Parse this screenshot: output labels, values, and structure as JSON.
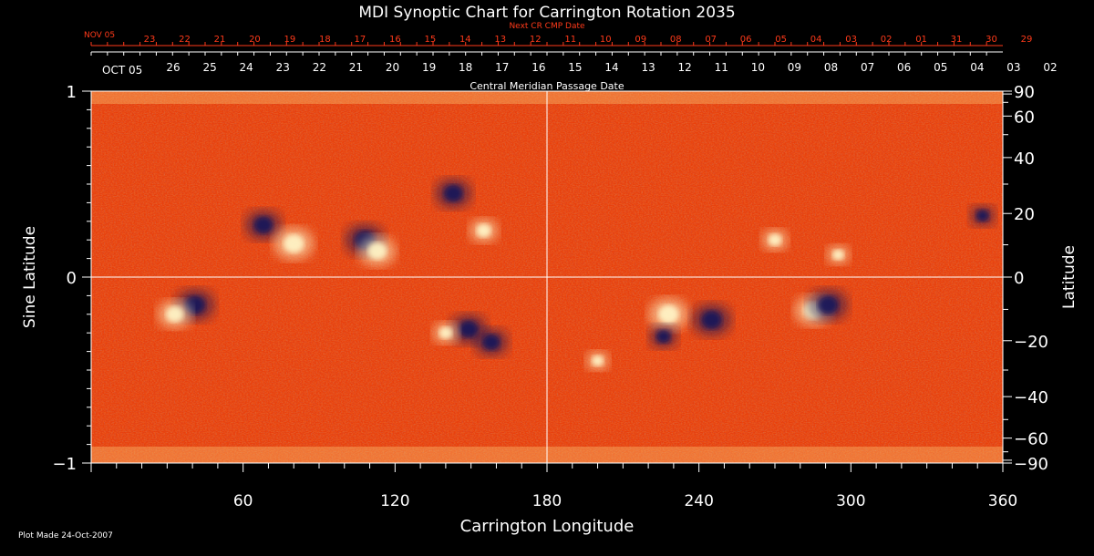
{
  "chart_data": {
    "type": "heatmap",
    "title": "MDI Synoptic Chart for Carrington Rotation 2035",
    "top_axis_next": {
      "title": "Next CR CMP Date",
      "month_label": "NOV 05",
      "ticks": [
        "23",
        "22",
        "21",
        "20",
        "19",
        "18",
        "17",
        "16",
        "15",
        "14",
        "13",
        "12",
        "11",
        "10",
        "09",
        "08",
        "07",
        "06",
        "05",
        "04",
        "03",
        "02",
        "01",
        "31",
        "30",
        "29"
      ]
    },
    "top_axis_cmp": {
      "title": "Central Meridian Passage Date",
      "month_label": "OCT 05",
      "ticks": [
        "26",
        "25",
        "24",
        "23",
        "22",
        "21",
        "20",
        "19",
        "18",
        "17",
        "16",
        "15",
        "14",
        "13",
        "12",
        "11",
        "10",
        "09",
        "08",
        "07",
        "06",
        "05",
        "04",
        "03",
        "02"
      ]
    },
    "x_axis": {
      "label": "Carrington Longitude",
      "range": [
        0,
        360
      ],
      "ticks": [
        60,
        120,
        180,
        240,
        300,
        360
      ]
    },
    "y_axis_left": {
      "label": "Sine Latitude",
      "range": [
        -1,
        1
      ],
      "ticks": [
        {
          "value": 1,
          "text": "1"
        },
        {
          "value": 0,
          "text": "0"
        },
        {
          "value": -1,
          "text": "−1"
        }
      ]
    },
    "y_axis_right": {
      "label": "Latitude",
      "ticks": [
        {
          "value": 90,
          "text": "90"
        },
        {
          "value": 60,
          "text": "60"
        },
        {
          "value": 40,
          "text": "40"
        },
        {
          "value": 20,
          "text": "20"
        },
        {
          "value": 0,
          "text": "0"
        },
        {
          "value": -20,
          "text": "−20"
        },
        {
          "value": -40,
          "text": "−40"
        },
        {
          "value": -60,
          "text": "−60"
        },
        {
          "value": -90,
          "text": "−90"
        }
      ]
    },
    "grid_lines": {
      "longitude": 180,
      "sine_latitude": 0
    },
    "colors": {
      "background_field": "#f04a08",
      "positive_flux": "#fff6c8",
      "negative_flux": "#14125a",
      "top_next_axis": "#ff3a1a",
      "axes": "#ffffff"
    },
    "regions": [
      {
        "lon": 41,
        "sinlat": -0.15,
        "polarity": "negative",
        "strength": 1.0
      },
      {
        "lon": 33,
        "sinlat": -0.2,
        "polarity": "positive",
        "strength": 0.8
      },
      {
        "lon": 68,
        "sinlat": 0.28,
        "polarity": "negative",
        "strength": 0.9
      },
      {
        "lon": 80,
        "sinlat": 0.18,
        "polarity": "positive",
        "strength": 1.0
      },
      {
        "lon": 108,
        "sinlat": 0.2,
        "polarity": "negative",
        "strength": 1.0
      },
      {
        "lon": 113,
        "sinlat": 0.14,
        "polarity": "positive",
        "strength": 0.9
      },
      {
        "lon": 143,
        "sinlat": 0.45,
        "polarity": "negative",
        "strength": 0.9
      },
      {
        "lon": 155,
        "sinlat": 0.25,
        "polarity": "positive",
        "strength": 0.6
      },
      {
        "lon": 149,
        "sinlat": -0.28,
        "polarity": "negative",
        "strength": 0.9
      },
      {
        "lon": 158,
        "sinlat": -0.35,
        "polarity": "negative",
        "strength": 0.8
      },
      {
        "lon": 140,
        "sinlat": -0.3,
        "polarity": "positive",
        "strength": 0.5
      },
      {
        "lon": 228,
        "sinlat": -0.2,
        "polarity": "positive",
        "strength": 1.0
      },
      {
        "lon": 245,
        "sinlat": -0.23,
        "polarity": "negative",
        "strength": 1.0
      },
      {
        "lon": 226,
        "sinlat": -0.32,
        "polarity": "negative",
        "strength": 0.6
      },
      {
        "lon": 285,
        "sinlat": -0.18,
        "polarity": "positive",
        "strength": 0.9
      },
      {
        "lon": 291,
        "sinlat": -0.15,
        "polarity": "negative",
        "strength": 1.0
      },
      {
        "lon": 295,
        "sinlat": 0.12,
        "polarity": "positive",
        "strength": 0.4
      },
      {
        "lon": 352,
        "sinlat": 0.33,
        "polarity": "negative",
        "strength": 0.5
      },
      {
        "lon": 270,
        "sinlat": 0.2,
        "polarity": "positive",
        "strength": 0.5
      },
      {
        "lon": 200,
        "sinlat": -0.45,
        "polarity": "positive",
        "strength": 0.4
      }
    ]
  },
  "footer": {
    "plot_made": "Plot Made 24-Oct-2007"
  }
}
